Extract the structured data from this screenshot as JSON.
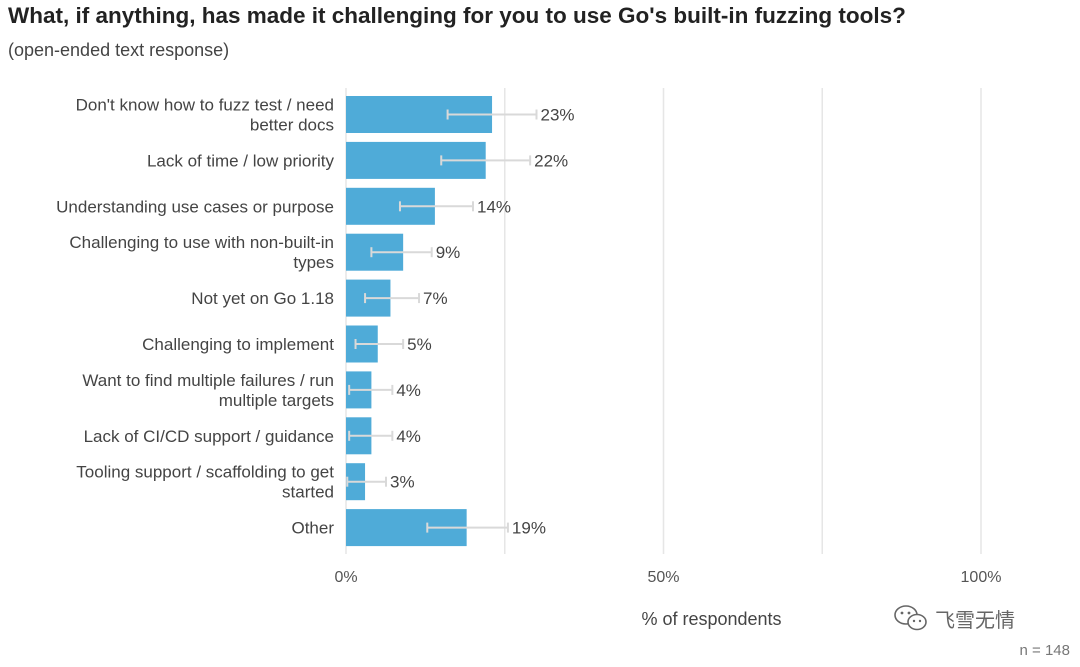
{
  "chart_data": {
    "type": "bar",
    "orientation": "horizontal",
    "title": "What, if anything, has made it challenging for you to use Go's built-in fuzzing tools?",
    "subtitle": "(open-ended text response)",
    "categories": [
      [
        "Don't know how to fuzz test / need",
        "better docs"
      ],
      [
        "Lack of time / low priority"
      ],
      [
        "Understanding use cases or purpose"
      ],
      [
        "Challenging to use with non-built-in",
        "types"
      ],
      [
        "Not yet on Go 1.18"
      ],
      [
        "Challenging to implement"
      ],
      [
        "Want to find multiple failures / run",
        "multiple targets"
      ],
      [
        "Lack of CI/CD support / guidance"
      ],
      [
        "Tooling support / scaffolding to get",
        "started"
      ],
      [
        "Other"
      ]
    ],
    "values": [
      23,
      22,
      14,
      9,
      7,
      5,
      4,
      4,
      3,
      19
    ],
    "value_labels": [
      "23%",
      "22%",
      "14%",
      "9%",
      "7%",
      "5%",
      "4%",
      "4%",
      "3%",
      "19%"
    ],
    "error_low": [
      16,
      15,
      8.5,
      4,
      3,
      1.5,
      0.5,
      0.5,
      0.2,
      12.8
    ],
    "error_high": [
      30,
      29,
      20,
      13.5,
      11.5,
      9,
      7.3,
      7.3,
      6.3,
      25.5
    ],
    "xlabel": "% of respondents",
    "xlim": [
      0,
      100
    ],
    "xticks": [
      0,
      50,
      100
    ],
    "xtick_labels": [
      "0%",
      "50%",
      "100%"
    ],
    "gridlines": [
      25,
      50,
      75,
      100
    ],
    "grid": true,
    "bar_color": "#4fabd8",
    "error_color": "#d9d9d9"
  },
  "footer": {
    "watermark": "飞雪无情",
    "n_label": "n = 148"
  }
}
